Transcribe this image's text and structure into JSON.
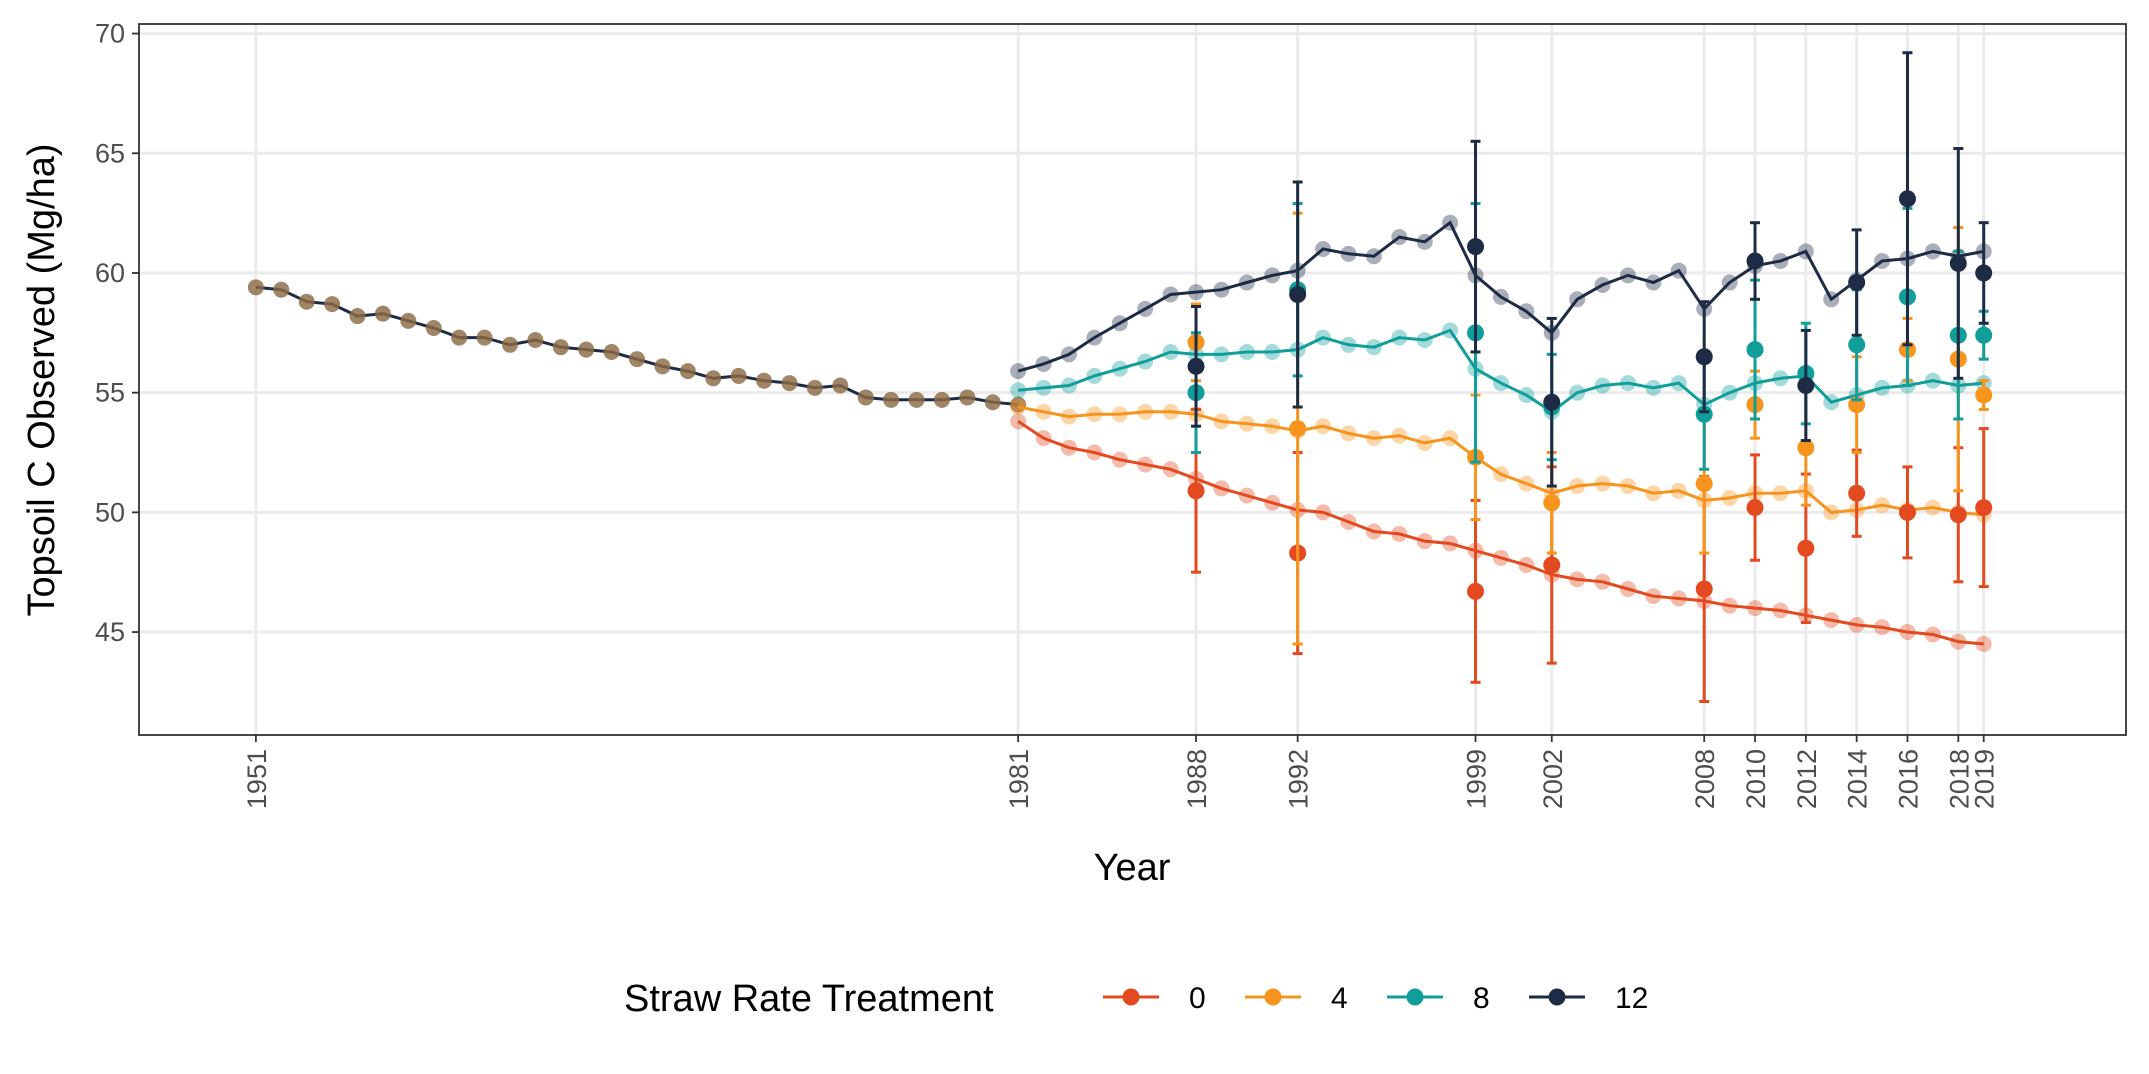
{
  "chart_data": {
    "type": "line",
    "xlabel": "Year",
    "ylabel": "Topsoil C Observed (Mg/ha)",
    "xlim": [
      1946.4,
      2024.6
    ],
    "ylim": [
      40.7,
      70.4
    ],
    "x_ticks": [
      1951,
      1981,
      1988,
      1992,
      1999,
      2002,
      2008,
      2010,
      2012,
      2014,
      2016,
      2018,
      2019
    ],
    "y_ticks": [
      45,
      50,
      55,
      60,
      65,
      70
    ],
    "grid": true,
    "legend": {
      "title": "Straw Rate Treatment",
      "position": "bottom",
      "entries": [
        "0",
        "4",
        "8",
        "12"
      ]
    },
    "baseline": {
      "color": "#8b6a45",
      "x": [
        1951,
        1952,
        1953,
        1954,
        1955,
        1956,
        1957,
        1958,
        1959,
        1960,
        1961,
        1962,
        1963,
        1964,
        1965,
        1966,
        1967,
        1968,
        1969,
        1970,
        1971,
        1972,
        1973,
        1974,
        1975,
        1976,
        1977,
        1978,
        1979,
        1980,
        1981
      ],
      "y": [
        59.4,
        59.3,
        58.8,
        58.7,
        58.2,
        58.3,
        58.0,
        57.7,
        57.3,
        57.3,
        57.0,
        57.2,
        56.9,
        56.8,
        56.7,
        56.4,
        56.1,
        55.9,
        55.6,
        55.7,
        55.5,
        55.4,
        55.2,
        55.3,
        54.8,
        54.7,
        54.7,
        54.7,
        54.8,
        54.6,
        54.5
      ]
    },
    "series": [
      {
        "name": "0",
        "color": "#e34a1f",
        "x": [
          1981,
          1982,
          1983,
          1984,
          1985,
          1986,
          1987,
          1988,
          1989,
          1990,
          1991,
          1992,
          1993,
          1994,
          1995,
          1996,
          1997,
          1998,
          1999,
          2000,
          2001,
          2002,
          2003,
          2004,
          2005,
          2006,
          2007,
          2008,
          2009,
          2010,
          2011,
          2012,
          2013,
          2014,
          2015,
          2016,
          2017,
          2018,
          2019
        ],
        "y": [
          53.8,
          53.1,
          52.7,
          52.5,
          52.2,
          52.0,
          51.8,
          51.4,
          51.0,
          50.7,
          50.4,
          50.1,
          50.0,
          49.6,
          49.2,
          49.1,
          48.8,
          48.7,
          48.4,
          48.1,
          47.8,
          47.4,
          47.2,
          47.1,
          46.8,
          46.5,
          46.4,
          46.3,
          46.1,
          46.0,
          45.9,
          45.7,
          45.5,
          45.3,
          45.2,
          45.0,
          44.9,
          44.6,
          44.5
        ],
        "obs_x": [
          1988,
          1992,
          1999,
          2002,
          2008,
          2010,
          2012,
          2014,
          2016,
          2018,
          2019
        ],
        "obs_y": [
          50.9,
          48.3,
          46.7,
          47.8,
          46.8,
          50.2,
          48.5,
          50.8,
          50.0,
          49.9,
          50.2
        ],
        "obs_err": [
          3.4,
          4.2,
          3.8,
          4.1,
          4.7,
          2.2,
          3.1,
          1.8,
          1.9,
          2.8,
          3.3
        ]
      },
      {
        "name": "4",
        "color": "#f7941d",
        "x": [
          1981,
          1982,
          1983,
          1984,
          1985,
          1986,
          1987,
          1988,
          1989,
          1990,
          1991,
          1992,
          1993,
          1994,
          1995,
          1996,
          1997,
          1998,
          1999,
          2000,
          2001,
          2002,
          2003,
          2004,
          2005,
          2006,
          2007,
          2008,
          2009,
          2010,
          2011,
          2012,
          2013,
          2014,
          2015,
          2016,
          2017,
          2018,
          2019
        ],
        "y": [
          54.4,
          54.2,
          54.0,
          54.1,
          54.1,
          54.2,
          54.2,
          54.1,
          53.8,
          53.7,
          53.6,
          53.4,
          53.6,
          53.3,
          53.1,
          53.2,
          52.9,
          53.1,
          52.3,
          51.6,
          51.2,
          50.8,
          51.1,
          51.2,
          51.1,
          50.8,
          50.9,
          50.5,
          50.6,
          50.8,
          50.8,
          50.9,
          50.0,
          50.1,
          50.3,
          50.1,
          50.2,
          50.0,
          49.9
        ],
        "obs_x": [
          1988,
          1992,
          1999,
          2002,
          2008,
          2010,
          2012,
          2014,
          2016,
          2018,
          2019
        ],
        "obs_y": [
          57.1,
          53.5,
          52.3,
          50.4,
          51.2,
          54.5,
          52.7,
          54.5,
          56.8,
          56.4,
          54.9
        ],
        "obs_err": [
          1.6,
          9.0,
          2.6,
          2.1,
          2.9,
          1.4,
          2.4,
          2.0,
          1.3,
          5.5,
          0.6
        ]
      },
      {
        "name": "8",
        "color": "#119e9a",
        "x": [
          1981,
          1982,
          1983,
          1984,
          1985,
          1986,
          1987,
          1988,
          1989,
          1990,
          1991,
          1992,
          1993,
          1994,
          1995,
          1996,
          1997,
          1998,
          1999,
          2000,
          2001,
          2002,
          2003,
          2004,
          2005,
          2006,
          2007,
          2008,
          2009,
          2010,
          2011,
          2012,
          2013,
          2014,
          2015,
          2016,
          2017,
          2018,
          2019
        ],
        "y": [
          55.1,
          55.2,
          55.3,
          55.7,
          56.0,
          56.3,
          56.7,
          56.6,
          56.6,
          56.7,
          56.7,
          56.8,
          57.3,
          57.0,
          56.9,
          57.3,
          57.2,
          57.6,
          56.0,
          55.4,
          54.9,
          54.2,
          55.0,
          55.3,
          55.4,
          55.2,
          55.4,
          54.5,
          55.0,
          55.4,
          55.6,
          55.7,
          54.6,
          54.9,
          55.2,
          55.3,
          55.5,
          55.3,
          55.4
        ],
        "obs_x": [
          1988,
          1992,
          1999,
          2002,
          2008,
          2010,
          2012,
          2014,
          2016,
          2018,
          2019
        ],
        "obs_y": [
          55.0,
          59.3,
          57.5,
          54.4,
          54.1,
          56.8,
          55.8,
          57.0,
          59.0,
          57.4,
          57.4
        ],
        "obs_err": [
          2.5,
          3.6,
          5.4,
          2.2,
          2.3,
          2.9,
          2.1,
          2.3,
          3.7,
          3.5,
          1.0
        ]
      },
      {
        "name": "12",
        "color": "#1e2b45",
        "x": [
          1981,
          1982,
          1983,
          1984,
          1985,
          1986,
          1987,
          1988,
          1989,
          1990,
          1991,
          1992,
          1993,
          1994,
          1995,
          1996,
          1997,
          1998,
          1999,
          2000,
          2001,
          2002,
          2003,
          2004,
          2005,
          2006,
          2007,
          2008,
          2009,
          2010,
          2011,
          2012,
          2013,
          2014,
          2015,
          2016,
          2017,
          2018,
          2019
        ],
        "y": [
          55.9,
          56.2,
          56.6,
          57.3,
          57.9,
          58.5,
          59.1,
          59.2,
          59.3,
          59.6,
          59.9,
          60.1,
          61.0,
          60.8,
          60.7,
          61.5,
          61.3,
          62.1,
          59.9,
          59.0,
          58.4,
          57.5,
          58.9,
          59.5,
          59.9,
          59.6,
          60.1,
          58.5,
          59.6,
          60.3,
          60.5,
          60.9,
          58.9,
          59.7,
          60.5,
          60.6,
          60.9,
          60.7,
          60.9
        ],
        "obs_x": [
          1988,
          1992,
          1999,
          2002,
          2008,
          2010,
          2012,
          2014,
          2016,
          2018,
          2019
        ],
        "obs_y": [
          56.1,
          59.1,
          61.1,
          54.6,
          56.5,
          60.5,
          55.3,
          59.6,
          63.1,
          60.4,
          60.0
        ],
        "obs_err": [
          2.5,
          4.7,
          4.4,
          3.5,
          2.3,
          1.6,
          2.3,
          2.2,
          6.1,
          4.8,
          2.1
        ]
      }
    ]
  }
}
